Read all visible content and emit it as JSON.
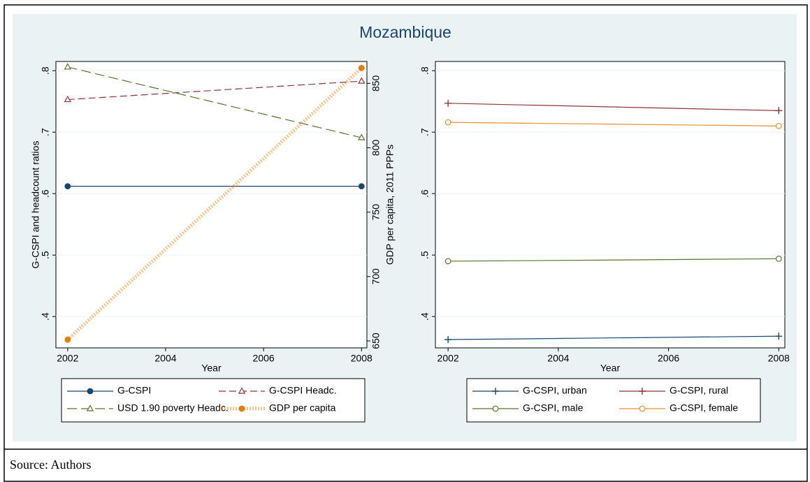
{
  "title": "Mozambique",
  "source": "Source: Authors",
  "chart_data": [
    {
      "type": "line",
      "xlabel": "Year",
      "ylabel": "G-CSPI and headcount ratios",
      "y2label": "GDP per capita, 2011 PPPs",
      "x": [
        2002,
        2008
      ],
      "xlim": [
        2001.76,
        2008.11
      ],
      "xticks": [
        2002,
        2004,
        2006,
        2008
      ],
      "ylim": [
        0.349,
        0.815
      ],
      "yticks": [
        {
          "value": 0.4,
          "label": ".4"
        },
        {
          "value": 0.5,
          "label": ".5"
        },
        {
          "value": 0.6,
          "label": ".6"
        },
        {
          "value": 0.7,
          "label": ".7"
        },
        {
          "value": 0.8,
          "label": ".8"
        }
      ],
      "y2lim": [
        644.6,
        867
      ],
      "y2ticks": [
        650,
        700,
        750,
        800,
        850
      ],
      "grid": true,
      "series": [
        {
          "name": "G-CSPI",
          "color": "#1a476f",
          "marker": "circle",
          "dash": "solid",
          "values": [
            0.612,
            0.612
          ]
        },
        {
          "name": "G-CSPI Headc.",
          "color": "#90353b",
          "marker": "triangle-hollow",
          "dash": "dash",
          "values": [
            0.753,
            0.783
          ]
        },
        {
          "name": "USD 1.90 poverty Headc.",
          "color": "#55752f",
          "marker": "triangle-hollow",
          "dash": "longdash",
          "values": [
            0.806,
            0.691
          ]
        },
        {
          "name": "GDP per capita",
          "color": "#e37e00",
          "marker": "circle",
          "dash": "dot",
          "axis": "y2",
          "values": [
            651,
            862
          ]
        }
      ]
    },
    {
      "type": "line",
      "xlabel": "Year",
      "x": [
        2002,
        2008
      ],
      "xlim": [
        2001.77,
        2008.11
      ],
      "xticks": [
        2002,
        2004,
        2006,
        2008
      ],
      "ylim": [
        0.349,
        0.815
      ],
      "yticks": [
        {
          "value": 0.4,
          "label": ".4"
        },
        {
          "value": 0.5,
          "label": ".5"
        },
        {
          "value": 0.6,
          "label": ".6"
        },
        {
          "value": 0.7,
          "label": ".7"
        },
        {
          "value": 0.8,
          "label": ".8"
        }
      ],
      "grid": true,
      "series": [
        {
          "name": "G-CSPI, urban",
          "color": "#1a476f",
          "marker": "plus",
          "dash": "solid",
          "values": [
            0.3625,
            0.368
          ]
        },
        {
          "name": "G-CSPI, rural",
          "color": "#90353b",
          "marker": "plus",
          "dash": "solid",
          "values": [
            0.747,
            0.735
          ]
        },
        {
          "name": "G-CSPI, male",
          "color": "#55752f",
          "marker": "circle-hollow",
          "dash": "solid",
          "values": [
            0.49,
            0.494
          ]
        },
        {
          "name": "G-CSPI, female",
          "color": "#e8912d",
          "marker": "circle-hollow",
          "dash": "solid",
          "values": [
            0.716,
            0.71
          ]
        }
      ]
    }
  ]
}
